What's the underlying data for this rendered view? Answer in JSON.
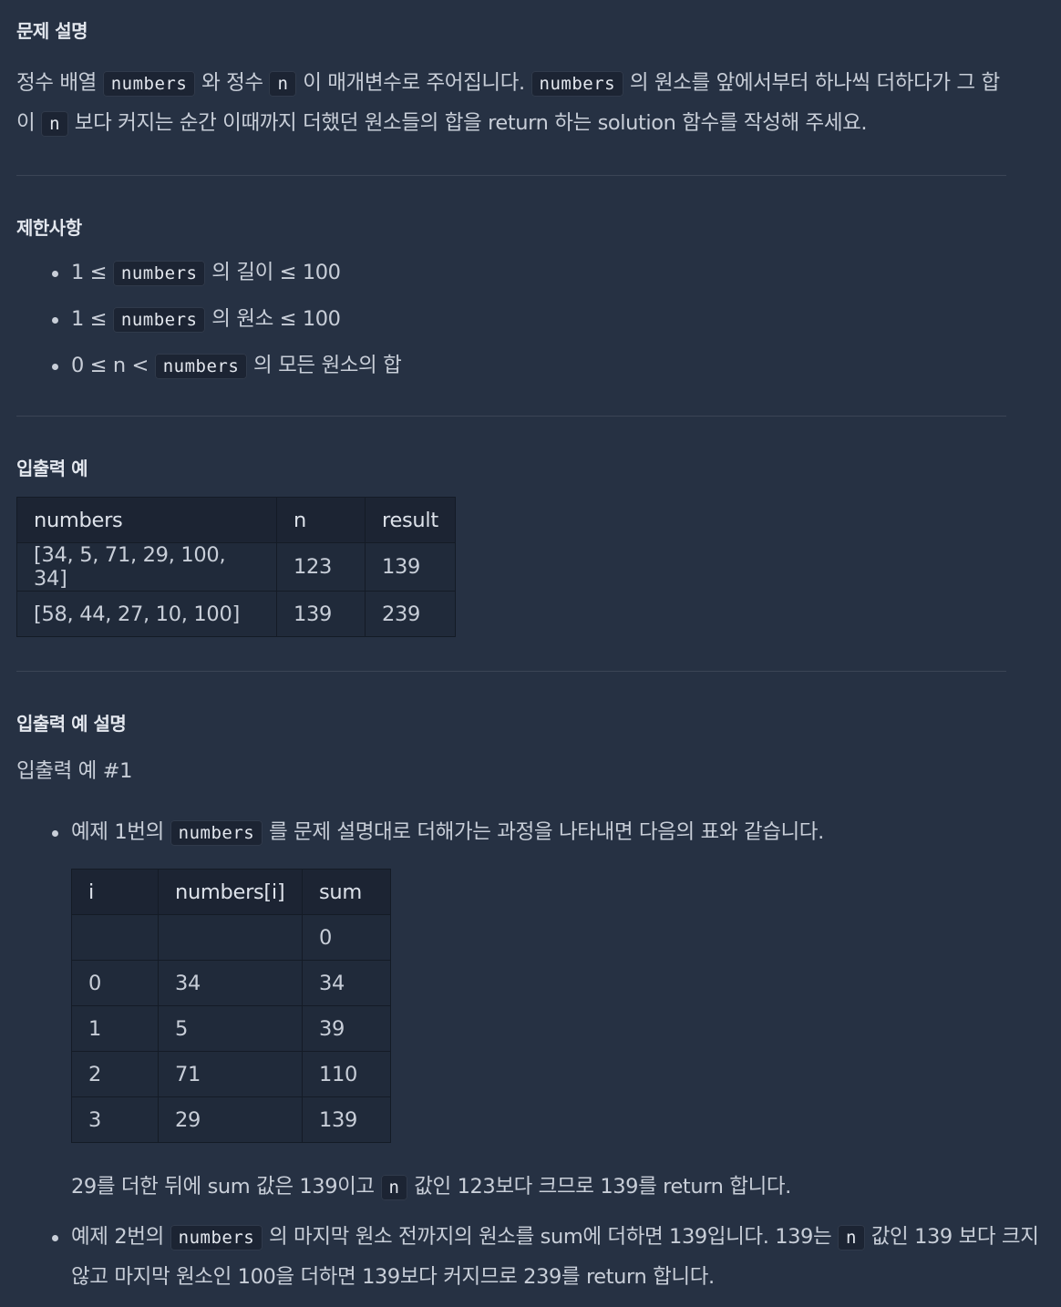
{
  "sections": {
    "description": {
      "title": "문제 설명",
      "p1": "정수 배열",
      "code1": "numbers",
      "p2": "와 정수",
      "code2": "n",
      "p3": "이 매개변수로 주어집니다.",
      "code3": "numbers",
      "p4": "의 원소를 앞에서부터 하나씩 더하다가 그 합이",
      "code4": "n",
      "p5": "보다 커지는 순간 이때까지 더했던 원소들의 합을 return 하는 solution 함수를 작성해 주세요."
    },
    "constraints": {
      "title": "제한사항",
      "items": [
        {
          "pre": "1 ≤",
          "code": "numbers",
          "post": "의 길이 ≤ 100"
        },
        {
          "pre": "1 ≤",
          "code": "numbers",
          "post": "의 원소 ≤ 100"
        },
        {
          "pre": "0 ≤ n <",
          "code": "numbers",
          "post": "의 모든 원소의 합"
        }
      ]
    },
    "examples": {
      "title": "입출력 예",
      "headers": [
        "numbers",
        "n",
        "result"
      ],
      "rows": [
        [
          "[34, 5, 71, 29, 100, 34]",
          "123",
          "139"
        ],
        [
          "[58, 44, 27, 10, 100]",
          "139",
          "239"
        ]
      ]
    },
    "explanation": {
      "title": "입출력 예 설명",
      "subtitle": "입출력 예 #1",
      "bullet1": {
        "pre": "예제 1번의",
        "code": "numbers",
        "post": "를 문제 설명대로 더해가는 과정을 나타내면 다음의 표와 같습니다."
      },
      "table": {
        "headers": [
          "i",
          "numbers[i]",
          "sum"
        ],
        "rows": [
          [
            "",
            "",
            "0"
          ],
          [
            "0",
            "34",
            "34"
          ],
          [
            "1",
            "5",
            "39"
          ],
          [
            "2",
            "71",
            "110"
          ],
          [
            "3",
            "29",
            "139"
          ]
        ]
      },
      "note": {
        "pre": "29를 더한 뒤에 sum 값은 139이고",
        "code": "n",
        "post": "값인 123보다 크므로 139를 return 합니다."
      },
      "bullet2": {
        "pre": "예제 2번의",
        "code1": "numbers",
        "mid": "의 마지막 원소 전까지의 원소를 sum에 더하면 139입니다. 139는",
        "code2": "n",
        "post": "값인 139 보다 크지 않고 마지막 원소인 100을 더하면 139보다 커지므로 239를 return 합니다."
      }
    }
  }
}
